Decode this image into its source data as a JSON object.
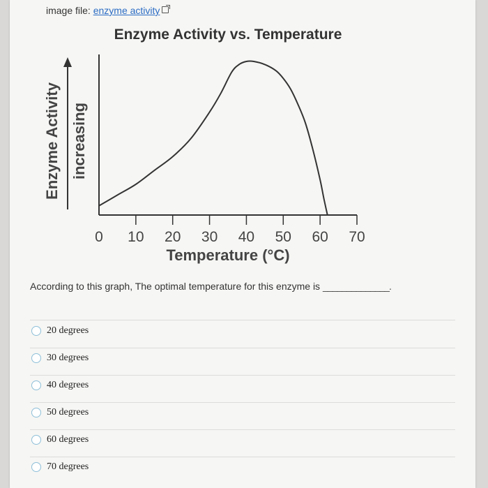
{
  "file_line": {
    "prefix": "image file:",
    "link": "enzyme activity"
  },
  "chart_data": {
    "type": "line",
    "title": "Enzyme Activity vs. Temperature",
    "xlabel": "Temperature (°C)",
    "ylabel": "Enzyme Activity",
    "ylabel_sub": "increasing",
    "xticks": [
      0,
      10,
      20,
      30,
      40,
      50,
      60,
      70
    ],
    "xlim": [
      0,
      70
    ],
    "ylim": [
      0,
      1
    ],
    "grid": false,
    "legend": "none",
    "series": [
      {
        "x": [
          0,
          5,
          10,
          15,
          20,
          25,
          30,
          33,
          36,
          38,
          40,
          42,
          45,
          48,
          50,
          52,
          54,
          56,
          58,
          60,
          61,
          62
        ],
        "y": [
          0.06,
          0.13,
          0.2,
          0.29,
          0.38,
          0.5,
          0.67,
          0.79,
          0.93,
          0.98,
          1.0,
          1.0,
          0.98,
          0.94,
          0.89,
          0.82,
          0.72,
          0.6,
          0.43,
          0.23,
          0.11,
          0.0
        ]
      }
    ]
  },
  "question": {
    "text": "According to this graph, The optimal temperature for this enzyme is",
    "blank": "______________."
  },
  "options": [
    "20 degrees",
    "30 degrees",
    "40 degrees",
    "50 degrees",
    "60 degrees",
    "70 degrees"
  ],
  "colors": {
    "page_bg": "#f6f6f4",
    "link": "#2b6cc4",
    "curve": "#333333",
    "radio_border": "#8dbfd8"
  }
}
